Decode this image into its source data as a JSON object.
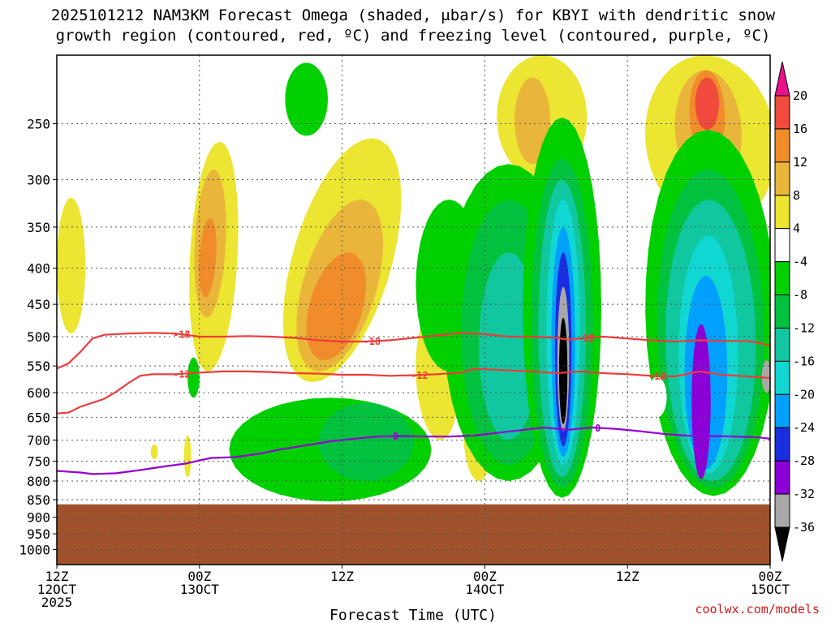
{
  "chart_data": {
    "type": "time-height cross section",
    "title_lines": [
      "2025101212 NAM3KM Forecast Omega (shaded, μbar/s) for KBYI with dendritic snow",
      "growth region (contoured, red, ºC) and freezing level (contoured, purple, ºC)"
    ],
    "xlabel": "Forecast Time (UTC)",
    "credit": "coolwx.com/models",
    "y_axis": {
      "kind": "pressure (hPa), log scale, top at 200",
      "range": [
        200,
        1050
      ],
      "ticks": [
        250,
        300,
        350,
        400,
        450,
        500,
        550,
        600,
        650,
        700,
        750,
        800,
        850,
        900,
        950,
        1000
      ]
    },
    "x_axis": {
      "unit": "hours since 12Z 12 Oct 2025",
      "range": [
        0,
        60
      ],
      "ticks": [
        {
          "h": 0,
          "lines": [
            "12Z",
            "12OCT",
            "2025"
          ]
        },
        {
          "h": 12,
          "lines": [
            "00Z",
            "13OCT"
          ]
        },
        {
          "h": 24,
          "lines": [
            "12Z"
          ]
        },
        {
          "h": 36,
          "lines": [
            "00Z",
            "14OCT"
          ]
        },
        {
          "h": 48,
          "lines": [
            "12Z"
          ]
        },
        {
          "h": 60,
          "lines": [
            "00Z",
            "15OCT"
          ]
        }
      ]
    },
    "colorbar": {
      "levels": [
        -36,
        -32,
        -28,
        -24,
        -20,
        -16,
        -12,
        -8,
        -4,
        4,
        8,
        12,
        16,
        20
      ],
      "colors": [
        "#000000",
        "#a8a8a8",
        "#8b00d6",
        "#1a2ee0",
        "#00a0ff",
        "#11d7d2",
        "#10c7a0",
        "#00c23e",
        "#00d000",
        "#ffffff",
        "#ece531",
        "#e9b63b",
        "#f08d2a",
        "#f04a3e",
        "#e8108c"
      ],
      "label_levels": [
        -36,
        -32,
        -28,
        -24,
        -20,
        -16,
        -12,
        -8,
        -4,
        4,
        8,
        12,
        16,
        20
      ]
    },
    "terrain": {
      "color": "#a0522d",
      "surface_pressure_hpa": 863
    },
    "contours": [
      {
        "name": "dendritic -18C",
        "level": -18,
        "label": "-18",
        "color": "#ee3b3b",
        "points": [
          [
            0,
            555
          ],
          [
            1,
            545
          ],
          [
            2,
            525
          ],
          [
            3,
            503
          ],
          [
            4,
            497
          ],
          [
            6,
            495
          ],
          [
            8,
            494
          ],
          [
            10,
            495
          ],
          [
            12,
            500
          ],
          [
            14,
            500
          ],
          [
            16,
            499
          ],
          [
            18,
            500
          ],
          [
            20,
            502
          ],
          [
            22,
            506
          ],
          [
            24,
            508
          ],
          [
            26,
            508
          ],
          [
            28,
            506
          ],
          [
            30,
            502
          ],
          [
            32,
            498
          ],
          [
            34,
            494
          ],
          [
            35,
            495
          ],
          [
            36,
            496
          ],
          [
            38,
            500
          ],
          [
            40,
            500
          ],
          [
            42,
            502
          ],
          [
            43,
            505
          ],
          [
            44,
            503
          ],
          [
            46,
            500
          ],
          [
            48,
            503
          ],
          [
            50,
            506
          ],
          [
            52,
            508
          ],
          [
            54,
            506
          ],
          [
            56,
            507
          ],
          [
            58,
            507
          ],
          [
            59,
            510
          ],
          [
            60,
            515
          ]
        ],
        "label_positions": [
          10.5,
          26.5,
          44.5
        ]
      },
      {
        "name": "dendritic -12C",
        "level": -12,
        "label": "-12",
        "color": "#ee3b3b",
        "points": [
          [
            0,
            642
          ],
          [
            1,
            640
          ],
          [
            2,
            628
          ],
          [
            3,
            620
          ],
          [
            4,
            612
          ],
          [
            5,
            598
          ],
          [
            6,
            582
          ],
          [
            7,
            568
          ],
          [
            8,
            565
          ],
          [
            10,
            565
          ],
          [
            12,
            562
          ],
          [
            14,
            560
          ],
          [
            16,
            560
          ],
          [
            18,
            561
          ],
          [
            20,
            563
          ],
          [
            22,
            564
          ],
          [
            24,
            566
          ],
          [
            26,
            566
          ],
          [
            28,
            568
          ],
          [
            30,
            567
          ],
          [
            32,
            565
          ],
          [
            34,
            562
          ],
          [
            35,
            556
          ],
          [
            36,
            556
          ],
          [
            38,
            558
          ],
          [
            40,
            560
          ],
          [
            42,
            563
          ],
          [
            44,
            560
          ],
          [
            46,
            563
          ],
          [
            48,
            565
          ],
          [
            50,
            568
          ],
          [
            52,
            569
          ],
          [
            54,
            560
          ],
          [
            56,
            566
          ],
          [
            58,
            569
          ],
          [
            60,
            572
          ]
        ],
        "label_positions": [
          10.5,
          30.5,
          50.5
        ]
      },
      {
        "name": "freezing level 0C",
        "level": 0,
        "label": "0",
        "color": "#9400d3",
        "points": [
          [
            0,
            774
          ],
          [
            2,
            778
          ],
          [
            3,
            782
          ],
          [
            5,
            780
          ],
          [
            7,
            772
          ],
          [
            9,
            763
          ],
          [
            11,
            755
          ],
          [
            12,
            748
          ],
          [
            13,
            742
          ],
          [
            15,
            740
          ],
          [
            17,
            732
          ],
          [
            19,
            721
          ],
          [
            21,
            712
          ],
          [
            23,
            703
          ],
          [
            25,
            697
          ],
          [
            27,
            692
          ],
          [
            29,
            691
          ],
          [
            31,
            692
          ],
          [
            33,
            692
          ],
          [
            35,
            690
          ],
          [
            37,
            684
          ],
          [
            39,
            678
          ],
          [
            41,
            672
          ],
          [
            43,
            677
          ],
          [
            45,
            672
          ],
          [
            47,
            675
          ],
          [
            49,
            680
          ],
          [
            51,
            686
          ],
          [
            53,
            690
          ],
          [
            55,
            691
          ],
          [
            57,
            692
          ],
          [
            59,
            694
          ],
          [
            60,
            697
          ]
        ],
        "label_positions": [
          28.5,
          45.5
        ]
      }
    ],
    "shaded_regions": [
      {
        "name": "ascent core black",
        "color": "#000000",
        "h": [
          42.3,
          42.9
        ],
        "p": [
          480,
          660
        ]
      },
      {
        "name": "ascent core gray",
        "color": "#a8a8a8",
        "h": [
          42.0,
          43.2
        ],
        "p": [
          430,
          675
        ]
      },
      {
        "name": "ascent core violet",
        "color": "#8b00d6",
        "h": [
          41.5,
          43.5
        ],
        "p": [
          380,
          710
        ]
      },
      {
        "name": "ascent core blue",
        "color": "#1a2ee0",
        "h": [
          41.0,
          44.0
        ],
        "p": [
          350,
          740
        ]
      },
      {
        "name": "late ascent blue",
        "color": "#1a2ee0",
        "h": [
          53.0,
          56.5
        ],
        "p": [
          420,
          750
        ]
      },
      {
        "name": "late ascent violet",
        "color": "#8b00d6",
        "h": [
          53.5,
          55.0
        ],
        "p": [
          480,
          790
        ]
      },
      {
        "name": "subsidence 20+",
        "color": "#f04a3e",
        "h": [
          53.5,
          56.0
        ],
        "p": [
          210,
          280
        ]
      },
      {
        "name": "subsidence 16-20",
        "color": "#f08d2a",
        "h": [
          52.0,
          56.5
        ],
        "p": [
          210,
          310
        ]
      },
      {
        "name": "subsidence 12-16",
        "color": "#e9b63b",
        "h": [
          19.0,
          26.0
        ],
        "p": [
          380,
          560
        ]
      },
      {
        "name": "subsidence 12-16 early",
        "color": "#f08d2a",
        "h": [
          11.5,
          13.0
        ],
        "p": [
          330,
          450
        ]
      }
    ]
  }
}
